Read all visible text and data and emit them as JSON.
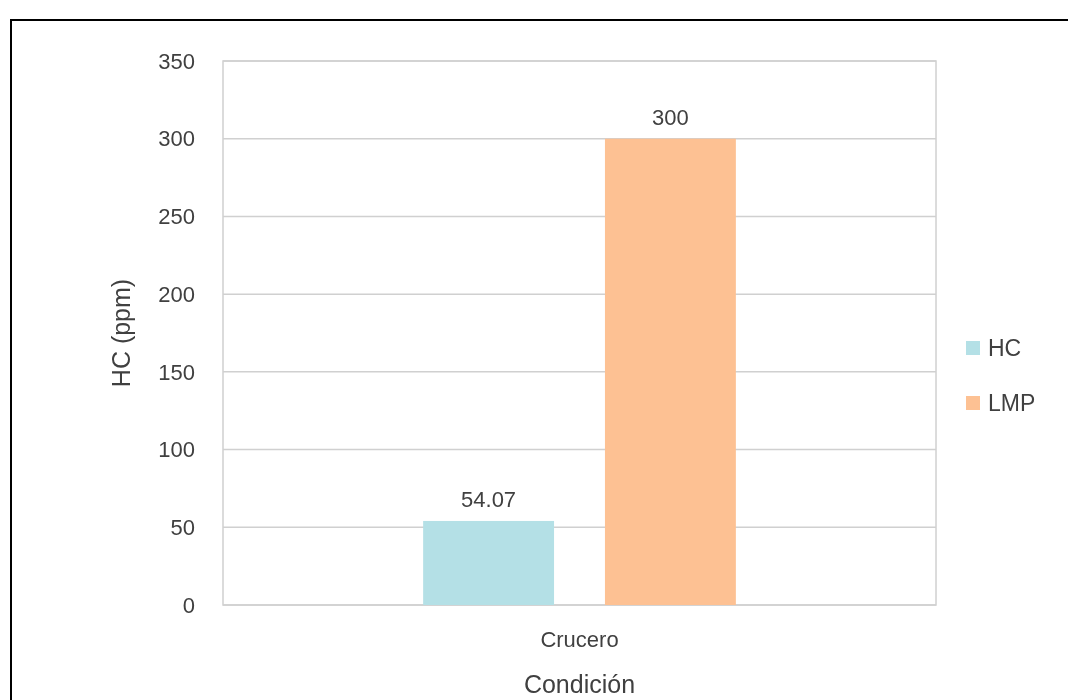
{
  "chart_data": {
    "type": "bar",
    "xlabel": "Condición",
    "ylabel": "HC  (ppm)",
    "categories": [
      "Crucero"
    ],
    "series": [
      {
        "name": "HC",
        "color": "#b4e0e6",
        "values": [
          54.07
        ]
      },
      {
        "name": "LMP",
        "color": "#fdc193",
        "values": [
          300
        ]
      }
    ],
    "ylim": [
      0,
      350
    ],
    "yticks": [
      0,
      50,
      100,
      150,
      200,
      250,
      300,
      350
    ],
    "grid": "y",
    "legend": "right",
    "data_labels": true
  }
}
